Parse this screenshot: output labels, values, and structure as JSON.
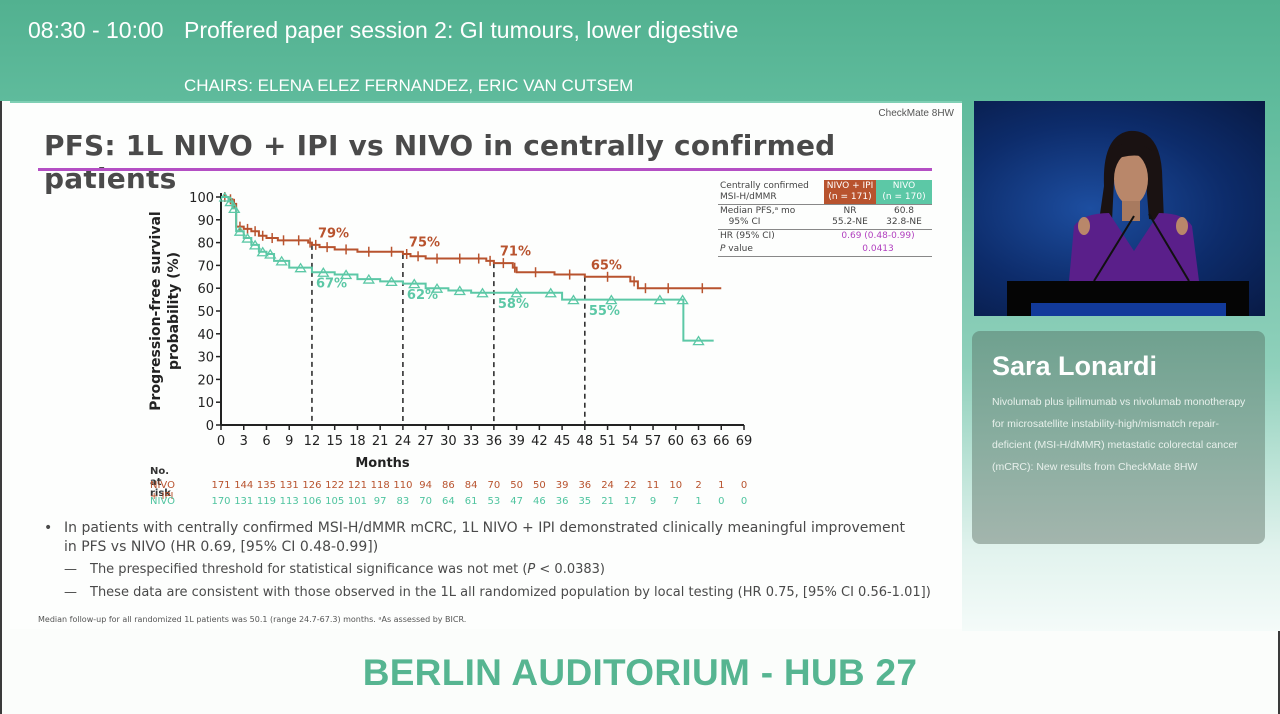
{
  "header": {
    "time": "08:30 - 10:00",
    "session_title": "Proffered paper session 2: GI tumours, lower digestive",
    "chairs": "CHAIRS: ELENA ELEZ FERNANDEZ, ERIC VAN CUTSEM"
  },
  "slide": {
    "tag": "CheckMate 8HW",
    "title": "PFS: 1L NIVO + IPI vs NIVO in centrally confirmed patients",
    "stats_table": {
      "row_label_1": "Centrally confirmed",
      "row_label_2": "MSI-H/dMMR",
      "col1_header_1": "NIVO + IPI",
      "col1_header_2": "(n = 171)",
      "col2_header_1": "NIVO",
      "col2_header_2": "(n = 170)",
      "median_label": "Median PFS,ᵃ mo",
      "ci_label": "95% CI",
      "median_col1": "NR",
      "median_col2": "60.8",
      "ci_col1": "55.2-NE",
      "ci_col2": "32.8-NE",
      "hr_label": "HR (95% CI)",
      "hr_value": "0.69 (0.48-0.99)",
      "p_label_italic": "P",
      "p_label_rest": " value",
      "p_value": "0.0413"
    },
    "risk_table": {
      "title": "No. at risk",
      "rows": [
        {
          "label": "NIVO + IPI",
          "values": [
            "171",
            "144",
            "135",
            "131",
            "126",
            "122",
            "121",
            "118",
            "110",
            "94",
            "86",
            "84",
            "70",
            "50",
            "50",
            "39",
            "36",
            "24",
            "22",
            "11",
            "10",
            "2",
            "1",
            "0"
          ]
        },
        {
          "label": "NIVO",
          "values": [
            "170",
            "131",
            "119",
            "113",
            "106",
            "105",
            "101",
            "97",
            "83",
            "70",
            "64",
            "61",
            "53",
            "47",
            "46",
            "36",
            "35",
            "21",
            "17",
            "9",
            "7",
            "1",
            "0",
            "0"
          ]
        }
      ]
    },
    "bullets": {
      "main_line1": "In patients with centrally confirmed MSI-H/dMMR mCRC, 1L NIVO + IPI demonstrated clinically meaningful improvement",
      "main_line2": "in PFS vs NIVO (HR 0.69, [95% CI 0.48-0.99])",
      "sub1_pre": "The prespecified threshold for statistical significance was not met (",
      "sub1_italic": "P",
      "sub1_post": " < 0.0383)",
      "sub2": "These data are consistent with those observed in the 1L all randomized population by local testing (HR 0.75, [95% CI 0.56-1.01])",
      "dash": "—"
    },
    "footnote": "Median follow-up for all randomized 1L patients was 50.1 (range 24.7-67.3) months. ᵃAs assessed by BICR."
  },
  "speaker": {
    "name": "Sara Lonardi",
    "talk_title": "Nivolumab plus ipilimumab vs nivolumab monotherapy for microsatellite instability-high/mismatch repair-deficient (MSI-H/dMMR) metastatic colorectal cancer (mCRC): New results from CheckMate 8HW"
  },
  "venue": "BERLIN AUDITORIUM - HUB 27",
  "colors": {
    "header_green": "#52b190",
    "nivo_ipi": "#b8532e",
    "nivo": "#5cc8a6",
    "title_rule": "#b44fc4",
    "venue_text": "#56b591"
  },
  "chart_data": {
    "type": "line",
    "title": "PFS: 1L NIVO + IPI vs NIVO in centrally confirmed patients",
    "xlabel": "Months",
    "ylabel": "Progression-free survival probability (%)",
    "xlim": [
      0,
      69
    ],
    "ylim": [
      0,
      100
    ],
    "x_ticks": [
      0,
      3,
      6,
      9,
      12,
      15,
      18,
      21,
      24,
      27,
      30,
      33,
      36,
      39,
      42,
      45,
      48,
      51,
      54,
      57,
      60,
      63,
      66,
      69
    ],
    "y_ticks": [
      0,
      10,
      20,
      30,
      40,
      50,
      60,
      70,
      80,
      90,
      100
    ],
    "grid": false,
    "reference_lines_x": [
      12,
      24,
      36,
      48
    ],
    "series": [
      {
        "name": "NIVO + IPI",
        "color": "#b8532e",
        "x": [
          0,
          1,
          1.5,
          2,
          3,
          4,
          5,
          6,
          7.5,
          9,
          11.5,
          12,
          13,
          15,
          18,
          21,
          24,
          25,
          27,
          30,
          33,
          35,
          36,
          38.5,
          39,
          44,
          48,
          54,
          55,
          57,
          61,
          66
        ],
        "y": [
          100,
          99,
          97,
          87,
          86,
          85,
          83,
          82,
          81,
          81,
          80,
          79,
          78,
          77,
          76,
          76,
          75,
          74,
          73,
          73,
          73,
          72,
          71,
          69,
          67,
          66,
          65,
          63,
          60,
          60,
          60,
          60
        ],
        "landmark_labels": [
          {
            "x": 12,
            "label": "79%"
          },
          {
            "x": 24,
            "label": "75%"
          },
          {
            "x": 36,
            "label": "71%"
          },
          {
            "x": 48,
            "label": "65%"
          }
        ]
      },
      {
        "name": "NIVO",
        "color": "#5cc8a6",
        "x": [
          0,
          1,
          1.5,
          2,
          3,
          4,
          5,
          6,
          7,
          9,
          12,
          15,
          18,
          21,
          24,
          27,
          30,
          33,
          36,
          42,
          45,
          48,
          55,
          60.8,
          61,
          65
        ],
        "y": [
          100,
          98,
          95,
          85,
          82,
          79,
          76,
          75,
          72,
          69,
          67,
          66,
          64,
          63,
          62,
          60,
          59,
          58,
          58,
          58,
          55,
          55,
          55,
          55,
          37,
          37
        ],
        "landmark_labels": [
          {
            "x": 12,
            "label": "67%"
          },
          {
            "x": 24,
            "label": "62%"
          },
          {
            "x": 36,
            "label": "58%"
          },
          {
            "x": 48,
            "label": "55%"
          }
        ]
      }
    ]
  }
}
